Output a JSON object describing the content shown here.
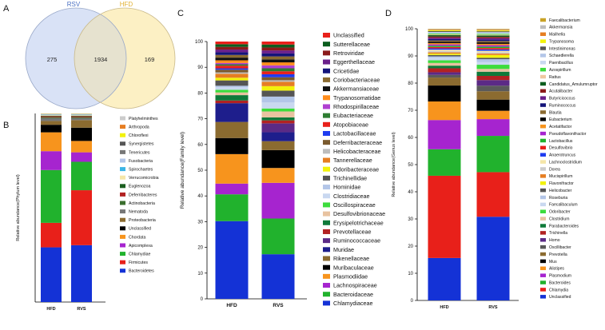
{
  "panels": {
    "a": "A",
    "b": "B",
    "c": "C",
    "d": "D"
  },
  "venn": {
    "set_left": "RSV",
    "set_right": "HFD",
    "left_only": "275",
    "intersection": "1934",
    "right_only": "169",
    "colors": {
      "left": "#d9e2f6",
      "right": "#fcf0c4",
      "overlap": "#e6e2cf",
      "left_label": "#4a6fc2",
      "right_label": "#e2b234"
    }
  },
  "chart_data": [
    {
      "id": "phylum",
      "type": "stacked_bar",
      "ylabel": "Relative abundance(Phylum level)",
      "xlabel": "",
      "categories": [
        "HFD",
        "RVS"
      ],
      "ylim": [
        0,
        100
      ],
      "yticks": [],
      "series": [
        {
          "name": "Bacteroidetes",
          "color": "#1432d6",
          "values": [
            29,
            30
          ]
        },
        {
          "name": "Firmicutes",
          "color": "#e8201a",
          "values": [
            13,
            29
          ]
        },
        {
          "name": "Chlamydiae",
          "color": "#21b22d",
          "values": [
            28,
            15
          ]
        },
        {
          "name": "Apicomplexa",
          "color": "#a624cf",
          "values": [
            10,
            5
          ]
        },
        {
          "name": "Chordata",
          "color": "#f7941d",
          "values": [
            10,
            6
          ]
        },
        {
          "name": "Unclassified",
          "color": "#000000",
          "values": [
            4,
            7
          ]
        },
        {
          "name": "Proteobacteria",
          "color": "#8b6b30",
          "values": [
            2,
            4
          ]
        },
        {
          "name": "Nematoda",
          "color": "#777777",
          "values": [
            1.5,
            1
          ]
        },
        {
          "name": "Actinobacteria",
          "color": "#3a6e2e",
          "values": [
            0.5,
            0.5
          ]
        },
        {
          "name": "Deferribacteres",
          "color": "#b22222",
          "values": [
            0.5,
            0.5
          ]
        },
        {
          "name": "Euglenozoa",
          "color": "#1b5e20",
          "values": [
            0.3,
            0.3
          ]
        },
        {
          "name": "Verrucomicrobia",
          "color": "#f5e6a8",
          "values": [
            0.3,
            0.3
          ]
        },
        {
          "name": "Spirochaetes",
          "color": "#3bb4e6",
          "values": [
            0.2,
            0.2
          ]
        },
        {
          "name": "Fusobacteria",
          "color": "#b3c6e8",
          "values": [
            0.2,
            0.2
          ]
        },
        {
          "name": "Tenericutes",
          "color": "#777777",
          "values": [
            0.1,
            0.1
          ]
        },
        {
          "name": "Synergistetes",
          "color": "#555555",
          "values": [
            0.1,
            0.1
          ]
        },
        {
          "name": "Chloroflexi",
          "color": "#f2f20c",
          "values": [
            0.1,
            0.1
          ]
        },
        {
          "name": "Arthropoda",
          "color": "#e67e22",
          "values": [
            0.1,
            0.1
          ]
        },
        {
          "name": "Platyhelminthes",
          "color": "#cccccc",
          "values": [
            0.1,
            0.1
          ]
        }
      ]
    },
    {
      "id": "family",
      "type": "stacked_bar",
      "ylabel": "Relative abundance(Family level)",
      "xlabel": "",
      "categories": [
        "HFD",
        "RVS"
      ],
      "ylim": [
        0,
        100
      ],
      "yticks": [
        "0",
        "10",
        "20",
        "30",
        "40",
        "50",
        "60",
        "70",
        "80",
        "90",
        "100"
      ],
      "series": [
        {
          "name": "Chlamydiaceae",
          "color": "#1432d6",
          "values": [
            29,
            15
          ]
        },
        {
          "name": "Bacteroidaceae",
          "color": "#21b22d",
          "values": [
            10,
            12
          ]
        },
        {
          "name": "Lachnospiraceae",
          "color": "#a624cf",
          "values": [
            4,
            12
          ]
        },
        {
          "name": "Plasmodiidae",
          "color": "#f7941d",
          "values": [
            11,
            5
          ]
        },
        {
          "name": "Muribaculaceae",
          "color": "#000000",
          "values": [
            6,
            6
          ]
        },
        {
          "name": "Rikenellaceae",
          "color": "#8b6b30",
          "values": [
            6,
            3
          ]
        },
        {
          "name": "Muridae",
          "color": "#1e1e8c",
          "values": [
            7,
            3
          ]
        },
        {
          "name": "Ruminococcaceae",
          "color": "#5b2a86",
          "values": [
            0,
            3
          ]
        },
        {
          "name": "Prevotellaceae",
          "color": "#b22222",
          "values": [
            1,
            1
          ]
        },
        {
          "name": "Erysipelotrichaceae",
          "color": "#0f7a3a",
          "values": [
            2,
            1
          ]
        },
        {
          "name": "Desulfovibrionaceae",
          "color": "#e8c3a0",
          "values": [
            1,
            2
          ]
        },
        {
          "name": "Oscillospiraceae",
          "color": "#3ddc3d",
          "values": [
            1,
            1
          ]
        },
        {
          "name": "Clostridiaceae",
          "color": "#c9d8f0",
          "values": [
            1,
            2
          ]
        },
        {
          "name": "Hominidae",
          "color": "#b3c6e8",
          "values": [
            0.5,
            2
          ]
        },
        {
          "name": "Trichinellidae",
          "color": "#555555",
          "values": [
            2,
            2
          ]
        },
        {
          "name": "Odoribacteraceae",
          "color": "#f2f20c",
          "values": [
            1,
            1.5
          ]
        },
        {
          "name": "Tannerellaceae",
          "color": "#e67e22",
          "values": [
            1.5,
            1.5
          ]
        },
        {
          "name": "Helicobacteraceae",
          "color": "#bdbdbd",
          "values": [
            0.5,
            0.5
          ]
        },
        {
          "name": "Deferribacteraceae",
          "color": "#7a5a2e",
          "values": [
            1,
            1
          ]
        },
        {
          "name": "Lactobacillaceae",
          "color": "#1e3cf0",
          "values": [
            0.5,
            1
          ]
        },
        {
          "name": "Atopobiaceae",
          "color": "#e8201a",
          "values": [
            1,
            1
          ]
        },
        {
          "name": "Eubacteriaceae",
          "color": "#2e7d32",
          "values": [
            0.5,
            1
          ]
        },
        {
          "name": "Rhodospirillaceae",
          "color": "#b040d0",
          "values": [
            0.5,
            1
          ]
        },
        {
          "name": "Trypanosomatidae",
          "color": "#ff8c1a",
          "values": [
            1,
            1
          ]
        },
        {
          "name": "Akkermansiaceae",
          "color": "#111111",
          "values": [
            1,
            1
          ]
        },
        {
          "name": "Coriobacteriaceae",
          "color": "#8b6b30",
          "values": [
            1,
            1
          ]
        },
        {
          "name": "Cricetidae",
          "color": "#14147a",
          "values": [
            1,
            1
          ]
        },
        {
          "name": "Eggerthellaceae",
          "color": "#6a1f8a",
          "values": [
            1,
            1
          ]
        },
        {
          "name": "Retroviridae",
          "color": "#8b1a1a",
          "values": [
            1,
            1
          ]
        },
        {
          "name": "Sutterellaceae",
          "color": "#0b5d1e",
          "values": [
            1,
            1
          ]
        },
        {
          "name": "Unclassified",
          "color": "#e8201a",
          "values": [
            1,
            1
          ]
        }
      ]
    },
    {
      "id": "genus",
      "type": "stacked_bar",
      "ylabel": "Relative abundance(Genus level)",
      "xlabel": "",
      "categories": [
        "HFD",
        "RVS"
      ],
      "ylim": [
        0,
        100
      ],
      "yticks": [
        "0",
        "10",
        "20",
        "30",
        "40",
        "50",
        "60",
        "70",
        "80",
        "90",
        "100"
      ],
      "series": [
        {
          "name": "Unclassified",
          "color": "#1432d6",
          "values": [
            16,
            30
          ]
        },
        {
          "name": "Chlamydia",
          "color": "#e8201a",
          "values": [
            31,
            16
          ]
        },
        {
          "name": "Bacteroides",
          "color": "#21b22d",
          "values": [
            10,
            13
          ]
        },
        {
          "name": "Plasmodium",
          "color": "#a624cf",
          "values": [
            11,
            6
          ]
        },
        {
          "name": "Alistipes",
          "color": "#f7941d",
          "values": [
            7,
            3
          ]
        },
        {
          "name": "Mus",
          "color": "#000000",
          "values": [
            6,
            4
          ]
        },
        {
          "name": "Prevotella",
          "color": "#8b6b30",
          "values": [
            3,
            3
          ]
        },
        {
          "name": "Oscillibacter",
          "color": "#5a5a5a",
          "values": [
            1,
            2
          ]
        },
        {
          "name": "Homo",
          "color": "#5b2a86",
          "values": [
            1,
            2
          ]
        },
        {
          "name": "Trichinella",
          "color": "#b22222",
          "values": [
            1.5,
            1.5
          ]
        },
        {
          "name": "Parabacteroides",
          "color": "#0f7a3a",
          "values": [
            1,
            1.5
          ]
        },
        {
          "name": "Clostridium",
          "color": "#e8c3a0",
          "values": [
            1,
            1
          ]
        },
        {
          "name": "Odoribacter",
          "color": "#3ddc3d",
          "values": [
            1,
            1.5
          ]
        },
        {
          "name": "Faecalibaculum",
          "color": "#c9d8f0",
          "values": [
            1,
            1
          ]
        },
        {
          "name": "Roseburia",
          "color": "#b3c6e8",
          "values": [
            0.5,
            1
          ]
        },
        {
          "name": "Helicobacter",
          "color": "#555555",
          "values": [
            0.5,
            0.5
          ]
        },
        {
          "name": "Flavonifractor",
          "color": "#f2f20c",
          "values": [
            0.5,
            1
          ]
        },
        {
          "name": "Mucispirillum",
          "color": "#e67e22",
          "values": [
            0.5,
            0.5
          ]
        },
        {
          "name": "Dorea",
          "color": "#cccccc",
          "values": [
            0.5,
            0.5
          ]
        },
        {
          "name": "Lachnoclostridium",
          "color": "#f5e6a8",
          "values": [
            0.5,
            0.5
          ]
        },
        {
          "name": "Anaerotruncus",
          "color": "#1e3cf0",
          "values": [
            0.5,
            0.5
          ]
        },
        {
          "name": "Desulfovibrio",
          "color": "#e8201a",
          "values": [
            0.5,
            0.5
          ]
        },
        {
          "name": "Lactobacillus",
          "color": "#21b22d",
          "values": [
            0.5,
            0.5
          ]
        },
        {
          "name": "Pseudoflavonifractor",
          "color": "#a624cf",
          "values": [
            0.5,
            0.5
          ]
        },
        {
          "name": "Acetatifactor",
          "color": "#f7941d",
          "values": [
            0.5,
            0.5
          ]
        },
        {
          "name": "Eubacterium",
          "color": "#000000",
          "values": [
            0.5,
            0.5
          ]
        },
        {
          "name": "Blautia",
          "color": "#8b6b30",
          "values": [
            0.5,
            0.5
          ]
        },
        {
          "name": "Ruminococcus",
          "color": "#14147a",
          "values": [
            0.5,
            0.5
          ]
        },
        {
          "name": "Butyricicoccus",
          "color": "#6a1f8a",
          "values": [
            0.5,
            0.5
          ]
        },
        {
          "name": "Acutalibacter",
          "color": "#8b1a1a",
          "values": [
            0.5,
            0.5
          ]
        },
        {
          "name": "Candidatus_Amulumruptor",
          "color": "#0b5d1e",
          "values": [
            0.5,
            0.5
          ]
        },
        {
          "name": "Rattus",
          "color": "#f0c8a0",
          "values": [
            0.3,
            0.3
          ]
        },
        {
          "name": "Azospirillum",
          "color": "#3ddc3d",
          "values": [
            0.3,
            0.3
          ]
        },
        {
          "name": "Paenibacillus",
          "color": "#c9d8f0",
          "values": [
            0.3,
            0.3
          ]
        },
        {
          "name": "Schaedlerella",
          "color": "#b3c6e8",
          "values": [
            0.3,
            0.3
          ]
        },
        {
          "name": "Intestinimonas",
          "color": "#555555",
          "values": [
            0.3,
            0.3
          ]
        },
        {
          "name": "Trypanosoma",
          "color": "#f2f20c",
          "values": [
            0.3,
            0.3
          ]
        },
        {
          "name": "Mailhella",
          "color": "#e67e22",
          "values": [
            0.2,
            0.2
          ]
        },
        {
          "name": "Akkermansia",
          "color": "#bdbdbd",
          "values": [
            0.2,
            0.2
          ]
        },
        {
          "name": "Faecalibacterium",
          "color": "#c9a227",
          "values": [
            0.2,
            0.2
          ]
        }
      ]
    }
  ]
}
